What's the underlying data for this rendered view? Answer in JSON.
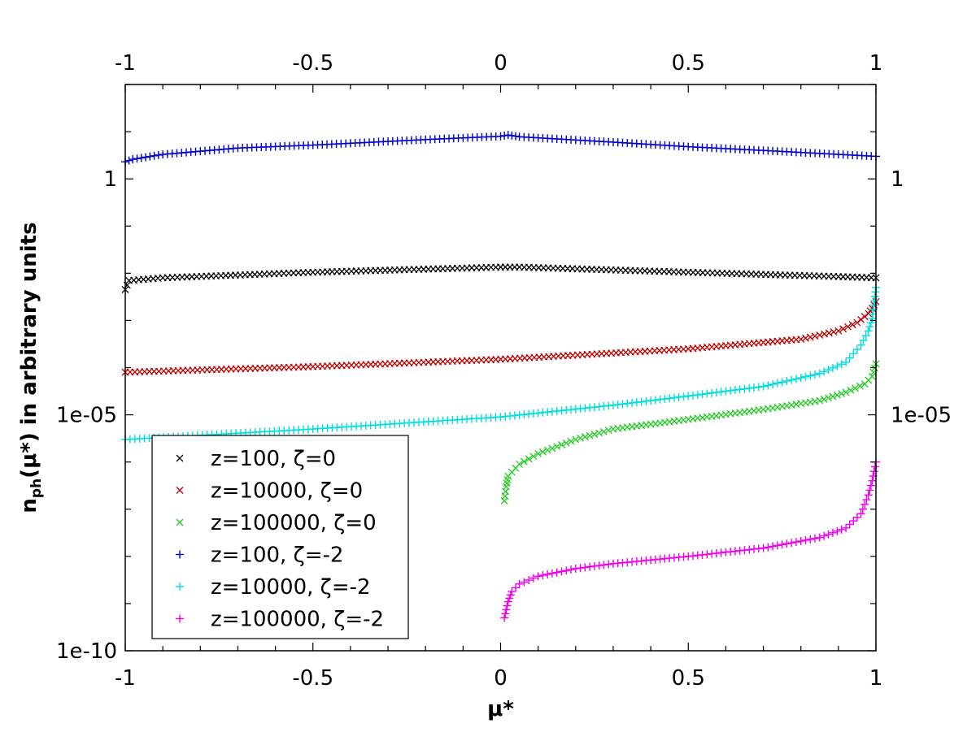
{
  "chart_data": {
    "type": "scatter",
    "title": "",
    "xlabel": "μ*",
    "ylabel": "nph(μ*) in arbitrary units",
    "ylabel_parts": {
      "main": "n",
      "sub": "ph",
      "rest": "(μ*) in arbitrary units"
    },
    "xlim": [
      -1,
      1
    ],
    "ylim": [
      1e-10,
      100
    ],
    "yscale": "log",
    "x_ticks": [
      -1,
      -0.5,
      0,
      0.5,
      1
    ],
    "x_tick_labels": [
      "-1",
      "-0.5",
      "0",
      "0.5",
      "1"
    ],
    "y_ticks": [
      1e-10,
      1e-05,
      1
    ],
    "y_tick_labels": [
      "1e-10",
      "1e-05",
      "1"
    ],
    "y_tick_labels_right": [
      "",
      "1e-05",
      "1"
    ],
    "legend_position": "bottom-left",
    "grid": false,
    "series": [
      {
        "name": "z=100, ζ=0",
        "marker": "x",
        "color": "#000000",
        "x": [
          -1,
          -0.99,
          -0.9,
          -0.5,
          0,
          0.05,
          0.5,
          0.9,
          1
        ],
        "y": [
          0.0045,
          0.007,
          0.008,
          0.0105,
          0.0135,
          0.0135,
          0.0105,
          0.0085,
          0.008
        ]
      },
      {
        "name": "z=10000, ζ=0",
        "marker": "x",
        "color": "#c00000",
        "x": [
          -1,
          -0.5,
          0,
          0.5,
          0.8,
          0.9,
          0.95,
          0.98,
          0.99,
          1
        ],
        "y": [
          8e-05,
          0.000105,
          0.00015,
          0.00025,
          0.0004,
          0.0006,
          0.0009,
          0.0014,
          0.0018,
          0.0025
        ]
      },
      {
        "name": "z=100000, ζ=0",
        "marker": "x",
        "color": "#22cc22",
        "x": [
          0.01,
          0.015,
          0.02,
          0.05,
          0.1,
          0.2,
          0.3,
          0.5,
          0.7,
          0.85,
          0.92,
          0.97,
          0.99,
          1
        ],
        "y": [
          1.5e-07,
          3e-07,
          5e-07,
          9e-07,
          1.5e-06,
          3e-06,
          5e-06,
          8e-06,
          1.3e-05,
          2e-05,
          3e-05,
          4.5e-05,
          6.5e-05,
          0.00012
        ]
      },
      {
        "name": "z=100, ζ=-2",
        "marker": "+",
        "color": "#0000cc",
        "x": [
          -1,
          -0.98,
          -0.9,
          -0.7,
          -0.5,
          -0.2,
          0,
          0.02,
          0.05,
          0.3,
          0.5,
          0.7,
          0.9,
          1
        ],
        "y": [
          2.3,
          2.6,
          3.3,
          4.5,
          5.2,
          6.8,
          8.0,
          8.5,
          7.8,
          6.0,
          4.8,
          4.0,
          3.3,
          3.0
        ]
      },
      {
        "name": "z=10000, ζ=-2",
        "marker": "+",
        "color": "#00dddd",
        "x": [
          -1,
          -0.5,
          0,
          0.3,
          0.5,
          0.7,
          0.85,
          0.92,
          0.96,
          0.98,
          0.99,
          1
        ],
        "y": [
          3e-06,
          5e-06,
          9e-06,
          1.6e-05,
          2.5e-05,
          4e-05,
          7.5e-05,
          0.00013,
          0.0003,
          0.0006,
          0.0011,
          0.005
        ]
      },
      {
        "name": "z=100000, ζ=-2",
        "marker": "+",
        "color": "#ee00ee",
        "x": [
          0.01,
          0.02,
          0.03,
          0.05,
          0.1,
          0.2,
          0.3,
          0.5,
          0.7,
          0.85,
          0.92,
          0.96,
          0.98,
          0.99,
          1
        ],
        "y": [
          5e-10,
          1.1e-09,
          1.8e-09,
          2.6e-09,
          3.8e-09,
          5.5e-09,
          7e-09,
          1e-08,
          1.5e-08,
          2.5e-08,
          4e-08,
          8e-08,
          2e-07,
          4e-07,
          1e-06
        ]
      }
    ]
  }
}
